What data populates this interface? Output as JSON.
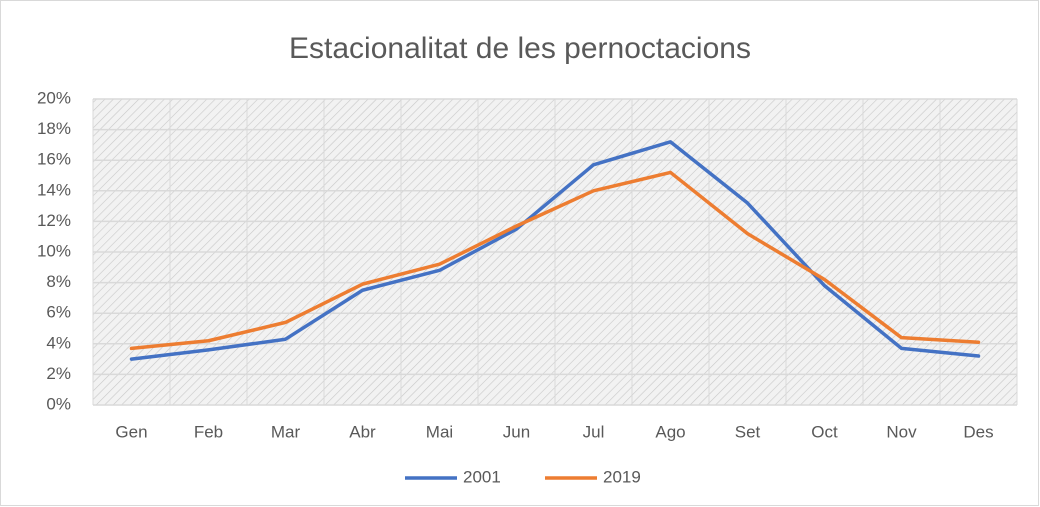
{
  "chart_data": {
    "type": "line",
    "title": "Estacionalitat de les pernoctacions",
    "categories": [
      "Gen",
      "Feb",
      "Mar",
      "Abr",
      "Mai",
      "Jun",
      "Jul",
      "Ago",
      "Set",
      "Oct",
      "Nov",
      "Des"
    ],
    "series": [
      {
        "name": "2001",
        "color": "#4472c4",
        "values": [
          3.0,
          3.6,
          4.3,
          7.5,
          8.8,
          11.5,
          15.7,
          17.2,
          13.2,
          7.8,
          3.7,
          3.2
        ]
      },
      {
        "name": "2019",
        "color": "#ed7d31",
        "values": [
          3.7,
          4.2,
          5.4,
          7.9,
          9.2,
          11.7,
          14.0,
          15.2,
          11.2,
          8.2,
          4.4,
          4.1
        ]
      }
    ],
    "ylim": [
      0,
      20
    ],
    "yticks": [
      {
        "value": 0,
        "label": "0%"
      },
      {
        "value": 2,
        "label": "2%"
      },
      {
        "value": 4,
        "label": "4%"
      },
      {
        "value": 6,
        "label": "6%"
      },
      {
        "value": 8,
        "label": "8%"
      },
      {
        "value": 10,
        "label": "10%"
      },
      {
        "value": 12,
        "label": "12%"
      },
      {
        "value": 14,
        "label": "14%"
      },
      {
        "value": 16,
        "label": "16%"
      },
      {
        "value": 18,
        "label": "18%"
      },
      {
        "value": 20,
        "label": "20%"
      }
    ],
    "grid": true,
    "legend": "bottom"
  }
}
